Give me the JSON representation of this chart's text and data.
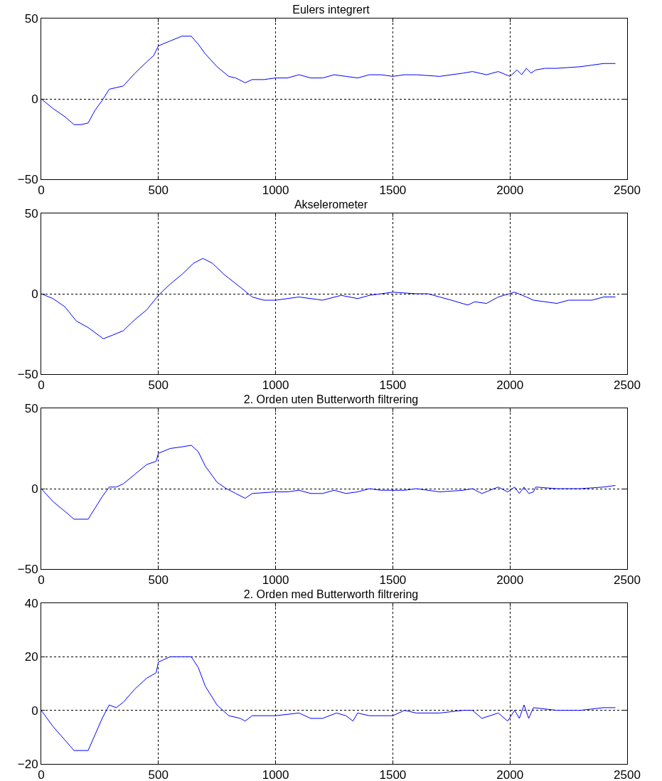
{
  "chart_data": [
    {
      "type": "line",
      "title": "Eulers integrert",
      "color": "#0000ff",
      "grid": true,
      "xlim": [
        0,
        2500
      ],
      "xticks": [
        0,
        500,
        1000,
        1500,
        2000,
        2500
      ],
      "ylim": [
        -50,
        50
      ],
      "yticks": [
        -50,
        0,
        50
      ],
      "x": [
        0,
        50,
        100,
        140,
        170,
        200,
        230,
        260,
        290,
        320,
        350,
        400,
        450,
        480,
        500,
        550,
        600,
        640,
        670,
        700,
        750,
        800,
        830,
        870,
        900,
        950,
        1000,
        1050,
        1100,
        1150,
        1200,
        1250,
        1300,
        1350,
        1400,
        1450,
        1500,
        1550,
        1600,
        1700,
        1800,
        1840,
        1900,
        1950,
        2000,
        2030,
        2050,
        2070,
        2090,
        2110,
        2150,
        2200,
        2300,
        2350,
        2400,
        2450
      ],
      "values": [
        0,
        -6,
        -11,
        -16,
        -16,
        -15,
        -7,
        -1,
        6,
        7,
        8,
        16,
        23,
        27,
        33,
        36,
        39,
        39,
        34,
        28,
        20,
        14,
        13,
        10,
        12,
        12,
        13,
        13,
        15,
        13,
        13,
        15,
        14,
        13,
        15,
        15,
        14,
        15,
        15,
        14,
        16,
        17,
        15,
        17,
        14,
        18,
        15,
        19,
        16,
        18,
        19,
        19,
        20,
        21,
        22,
        22
      ]
    },
    {
      "type": "line",
      "title": "Akselerometer",
      "color": "#0000ff",
      "grid": true,
      "xlim": [
        0,
        2500
      ],
      "xticks": [
        0,
        500,
        1000,
        1500,
        2000,
        2500
      ],
      "ylim": [
        -50,
        50
      ],
      "yticks": [
        -50,
        0,
        50
      ],
      "x": [
        0,
        50,
        100,
        150,
        200,
        265,
        300,
        350,
        400,
        450,
        500,
        550,
        600,
        650,
        690,
        730,
        780,
        850,
        900,
        950,
        1000,
        1100,
        1200,
        1280,
        1350,
        1400,
        1500,
        1600,
        1650,
        1700,
        1750,
        1820,
        1850,
        1900,
        1950,
        2020,
        2070,
        2100,
        2200,
        2250,
        2300,
        2350,
        2400,
        2450
      ],
      "values": [
        0,
        -3,
        -8,
        -17,
        -21,
        -28,
        -26,
        -23,
        -16,
        -10,
        -1,
        6,
        12,
        19,
        22,
        19,
        12,
        4,
        -2,
        -4,
        -4,
        -2,
        -4,
        -1,
        -3,
        -1,
        1,
        0,
        0,
        -2,
        -4,
        -7,
        -5,
        -6,
        -2,
        1,
        -2,
        -4,
        -6,
        -4,
        -4,
        -4,
        -2,
        -2
      ]
    },
    {
      "type": "line",
      "title": "2. Orden uten Butterworth filtrering",
      "color": "#0000ff",
      "grid": true,
      "xlim": [
        0,
        2500
      ],
      "xticks": [
        0,
        500,
        1000,
        1500,
        2000,
        2500
      ],
      "ylim": [
        -50,
        50
      ],
      "yticks": [
        -50,
        0,
        50
      ],
      "x": [
        0,
        50,
        100,
        140,
        200,
        230,
        260,
        290,
        320,
        350,
        400,
        450,
        490,
        500,
        550,
        600,
        640,
        670,
        700,
        750,
        790,
        830,
        870,
        900,
        1000,
        1050,
        1100,
        1150,
        1200,
        1250,
        1300,
        1350,
        1400,
        1450,
        1500,
        1550,
        1600,
        1700,
        1800,
        1840,
        1880,
        1950,
        1990,
        2020,
        2040,
        2060,
        2080,
        2100,
        2110,
        2200,
        2300,
        2400,
        2450
      ],
      "values": [
        0,
        -8,
        -14,
        -19,
        -19,
        -12,
        -5,
        1,
        1,
        3,
        9,
        15,
        17,
        22,
        25,
        26,
        27,
        23,
        14,
        4,
        0,
        -3,
        -6,
        -3,
        -2,
        -2,
        -1,
        -3,
        -3,
        -1,
        -3,
        -2,
        0,
        -1,
        -1,
        -1,
        0,
        -2,
        -1,
        0,
        -3,
        1,
        -2,
        1,
        -3,
        1,
        -3,
        -2,
        1,
        0,
        0,
        1,
        2
      ]
    },
    {
      "type": "line",
      "title": "2. Orden med Butterworth filtrering",
      "color": "#0000ff",
      "grid": true,
      "xlim": [
        0,
        2500
      ],
      "xticks": [
        0,
        500,
        1000,
        1500,
        2000,
        2500
      ],
      "ylim": [
        -20,
        40
      ],
      "yticks": [
        -20,
        0,
        20,
        40
      ],
      "x": [
        0,
        50,
        100,
        140,
        200,
        230,
        260,
        290,
        320,
        350,
        400,
        450,
        490,
        500,
        550,
        600,
        640,
        670,
        700,
        750,
        800,
        850,
        870,
        900,
        1000,
        1100,
        1150,
        1200,
        1260,
        1300,
        1330,
        1350,
        1400,
        1500,
        1550,
        1600,
        1700,
        1800,
        1840,
        1880,
        1950,
        1990,
        2020,
        2040,
        2060,
        2080,
        2100,
        2200,
        2300,
        2400,
        2450
      ],
      "values": [
        0,
        -6,
        -11,
        -15,
        -15,
        -9,
        -3,
        2,
        1,
        3,
        8,
        12,
        14,
        18,
        20,
        20,
        20,
        16,
        9,
        2,
        -2,
        -3,
        -4,
        -2,
        -2,
        -1,
        -3,
        -3,
        -1,
        -2,
        -4,
        -1,
        -2,
        -2,
        0,
        -1,
        -1,
        0,
        0,
        -3,
        -1,
        -4,
        0,
        -3,
        2,
        -3,
        1,
        0,
        0,
        1,
        1
      ]
    }
  ]
}
